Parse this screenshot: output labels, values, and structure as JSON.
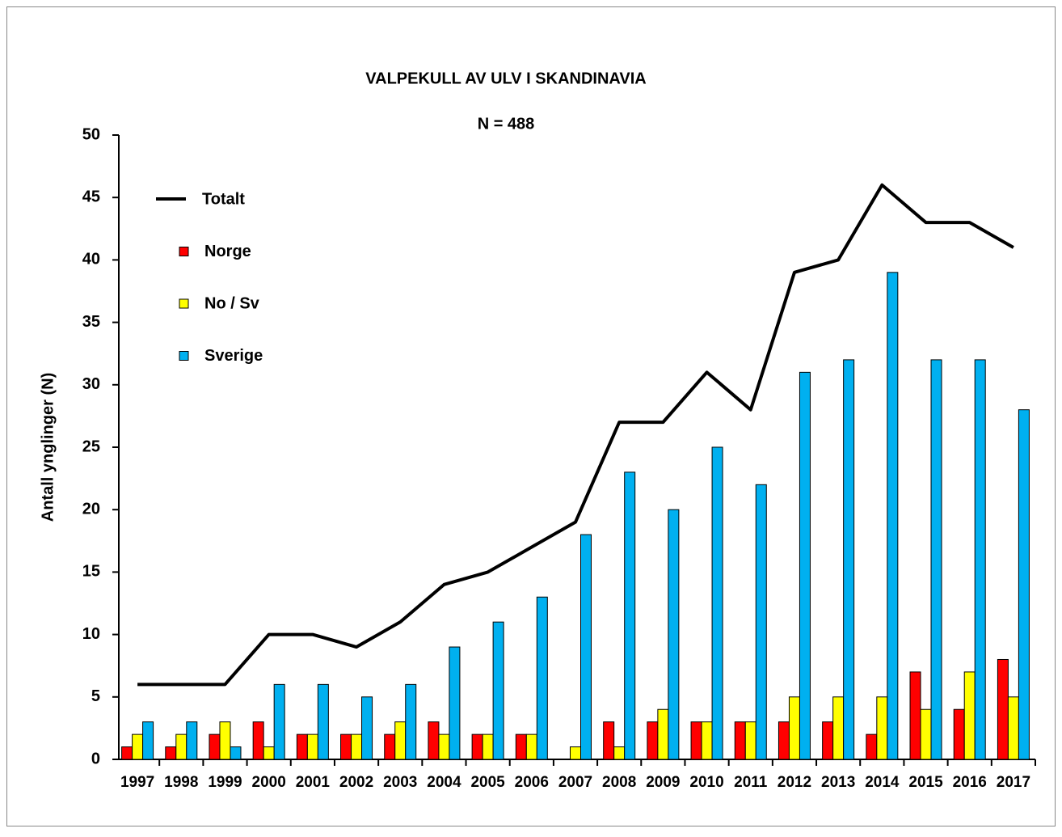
{
  "chart_data": {
    "type": "bar",
    "title": "VALPEKULL  AV ULV I SKANDINAVIA",
    "subtitle": "N = 488",
    "y_label": "Antall ynglinger (N)",
    "categories": [
      "1997",
      "1998",
      "1999",
      "2000",
      "2001",
      "2002",
      "2003",
      "2004",
      "2005",
      "2006",
      "2007",
      "2008",
      "2009",
      "2010",
      "2011",
      "2012",
      "2013",
      "2014",
      "2015",
      "2016",
      "2017"
    ],
    "series": [
      {
        "name": "Totalt",
        "type": "line",
        "color": "#000000",
        "values": [
          6,
          6,
          6,
          10,
          10,
          9,
          11,
          14,
          15,
          17,
          19,
          27,
          27,
          31,
          28,
          39,
          40,
          46,
          43,
          43,
          41
        ]
      },
      {
        "name": "Norge",
        "type": "bar",
        "color": "#ff0000",
        "values": [
          1,
          1,
          2,
          3,
          2,
          2,
          2,
          3,
          2,
          2,
          0,
          3,
          3,
          3,
          3,
          3,
          3,
          2,
          7,
          4,
          8
        ]
      },
      {
        "name": "No / Sv",
        "type": "bar",
        "color": "#ffff00",
        "values": [
          2,
          2,
          3,
          1,
          2,
          2,
          3,
          2,
          2,
          2,
          1,
          1,
          4,
          3,
          3,
          5,
          5,
          5,
          4,
          7,
          5
        ]
      },
      {
        "name": "Sverige",
        "type": "bar",
        "color": "#00b0f0",
        "values": [
          3,
          3,
          1,
          6,
          6,
          5,
          6,
          9,
          11,
          13,
          18,
          23,
          20,
          25,
          22,
          31,
          32,
          39,
          32,
          32,
          28
        ]
      }
    ],
    "ylim": [
      0,
      50
    ],
    "yticks": [
      0,
      5,
      10,
      15,
      20,
      25,
      30,
      35,
      40,
      45,
      50
    ]
  }
}
